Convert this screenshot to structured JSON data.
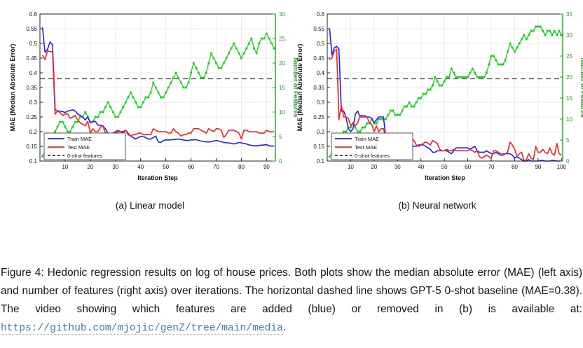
{
  "subcaptions": {
    "a": "(a) Linear model",
    "b": "(b) Neural network"
  },
  "caption": {
    "lines": [
      "Figure 4: Hedonic regression results on log of house prices. Both plots show the median absolute error (MAE) (left axis)",
      "and number of features (right axis) over iterations. The horizontal dashed line shows GPT-5 0-shot baseline (MAE=0.38).",
      "The video showing which features are added (blue) or removed in (b) is available at:"
    ],
    "link_text": "https://github.com/mjojic/genZ/tree/main/media",
    "after_link": "."
  },
  "colors": {
    "train": "#2020ff",
    "test": "#f82222",
    "features_line": "#12d412",
    "features_axis": "#1ea81e",
    "baseline": "#4f4f4f",
    "legend_dash": "#333333",
    "grid": "#ebebeb",
    "axis": "#222222",
    "text": "#111111",
    "link": "#3b7fad"
  },
  "chart_data": [
    {
      "type": "line",
      "title": "Linear model",
      "xlabel": "Iteration Step",
      "ylabel_left": "MAE (Median Absolute Error)",
      "ylabel_right": "Number of Features",
      "xlim": [
        0,
        93.5
      ],
      "xticks": [
        10,
        20,
        30,
        40,
        50,
        60,
        70,
        80,
        90
      ],
      "ylim_left": [
        0.1,
        0.6
      ],
      "yticks_left": [
        0.1,
        0.15,
        0.2,
        0.25,
        0.3,
        0.35,
        0.4,
        0.45,
        0.5,
        0.55,
        0.6
      ],
      "ylim_right": [
        0,
        30
      ],
      "yticks_right": [
        0,
        5,
        10,
        15,
        20,
        25,
        30
      ],
      "grid": true,
      "legend_position": "lower-left",
      "baseline": {
        "y": 0.38,
        "axis": "left",
        "label": "0-shot features"
      },
      "legend": [
        "Train MAE",
        "Test MAE",
        "0-shot features"
      ],
      "x_start": 1,
      "series": [
        {
          "name": "Train MAE",
          "axis": "left",
          "color": "#2020ff",
          "values": [
            0.555,
            0.47,
            0.48,
            0.505,
            0.495,
            0.275,
            0.27,
            0.27,
            0.268,
            0.265,
            0.27,
            0.272,
            0.274,
            0.27,
            0.26,
            0.255,
            0.25,
            0.24,
            0.25,
            0.23,
            0.235,
            0.235,
            0.222,
            0.222,
            0.22,
            0.21,
            0.195,
            0.19,
            0.192,
            0.195,
            0.2,
            0.2,
            0.2,
            0.205,
            0.195,
            0.185,
            0.18,
            0.175,
            0.18,
            0.183,
            0.183,
            0.18,
            0.175,
            0.175,
            0.18,
            0.185,
            0.165,
            0.163,
            0.17,
            0.172,
            0.172,
            0.172,
            0.173,
            0.174,
            0.175,
            0.173,
            0.172,
            0.17,
            0.17,
            0.172,
            0.172,
            0.173,
            0.17,
            0.168,
            0.167,
            0.165,
            0.165,
            0.166,
            0.168,
            0.17,
            0.168,
            0.166,
            0.163,
            0.162,
            0.162,
            0.16,
            0.158,
            0.16,
            0.163,
            0.162,
            0.16,
            0.158,
            0.155,
            0.153,
            0.152,
            0.152,
            0.153,
            0.154,
            0.155,
            0.156,
            0.152,
            0.151,
            0.151
          ]
        },
        {
          "name": "Test MAE",
          "axis": "left",
          "color": "#f82222",
          "values": [
            0.46,
            0.445,
            0.475,
            0.472,
            0.472,
            0.26,
            0.27,
            0.265,
            0.255,
            0.26,
            0.26,
            0.245,
            0.25,
            0.255,
            0.24,
            0.23,
            0.225,
            0.22,
            0.235,
            0.195,
            0.21,
            0.2,
            0.2,
            0.215,
            0.22,
            0.195,
            0.195,
            0.19,
            0.195,
            0.2,
            0.205,
            0.2,
            0.195,
            0.205,
            0.19,
            0.185,
            0.19,
            0.19,
            0.195,
            0.195,
            0.19,
            0.19,
            0.19,
            0.19,
            0.21,
            0.205,
            0.2,
            0.2,
            0.2,
            0.2,
            0.195,
            0.195,
            0.21,
            0.2,
            0.195,
            0.185,
            0.19,
            0.19,
            0.195,
            0.195,
            0.21,
            0.21,
            0.21,
            0.205,
            0.2,
            0.195,
            0.21,
            0.205,
            0.2,
            0.21,
            0.21,
            0.205,
            0.18,
            0.19,
            0.205,
            0.205,
            0.205,
            0.2,
            0.195,
            0.175,
            0.205,
            0.205,
            0.2,
            0.2,
            0.2,
            0.2,
            0.195,
            0.195,
            0.195,
            0.205,
            0.2,
            0.2,
            0.2
          ]
        },
        {
          "name": "Number of Features",
          "axis": "right",
          "color": "#12d412",
          "marker": "square",
          "values": [
            1,
            2,
            3,
            4,
            5,
            6,
            7,
            8,
            8,
            7,
            6,
            6,
            7,
            8,
            8,
            9,
            9,
            10,
            9,
            8,
            8,
            9,
            9,
            10,
            10,
            11,
            12,
            11,
            10,
            9,
            9,
            10,
            11,
            12,
            13,
            14,
            13,
            12,
            11,
            11,
            12,
            13,
            13,
            14,
            16,
            15,
            14,
            13,
            13,
            14,
            15,
            16,
            17,
            18,
            17,
            16,
            15,
            15,
            16,
            18,
            20,
            19,
            18,
            17,
            17,
            18,
            20,
            22,
            21,
            20,
            19,
            19,
            20,
            21,
            22,
            23,
            24,
            23,
            22,
            21,
            22,
            23,
            24,
            25,
            23,
            22,
            24,
            25,
            25,
            26,
            25,
            24,
            23
          ]
        }
      ]
    },
    {
      "type": "line",
      "title": "Neural network",
      "xlabel": "Iteration Step",
      "ylabel_left": "MAE (Median Absolute Error)",
      "ylabel_right": "Number of Features",
      "xlim": [
        0,
        100.5
      ],
      "xticks": [
        10,
        20,
        30,
        40,
        50,
        60,
        70,
        80,
        90,
        100
      ],
      "ylim_left": [
        0.1,
        0.6
      ],
      "yticks_left": [
        0.1,
        0.15,
        0.2,
        0.25,
        0.3,
        0.35,
        0.4,
        0.45,
        0.5,
        0.55,
        0.6
      ],
      "ylim_right": [
        0,
        35
      ],
      "yticks_right": [
        0,
        5,
        10,
        15,
        20,
        25,
        30,
        35
      ],
      "grid": true,
      "legend_position": "lower-left",
      "baseline": {
        "y": 0.38,
        "axis": "left",
        "label": "0-shot features"
      },
      "legend": [
        "Train MAE",
        "Test MAE",
        "0-shot features"
      ],
      "x_start": 1,
      "series": [
        {
          "name": "Train MAE",
          "axis": "left",
          "color": "#2020ff",
          "values": [
            0.55,
            0.46,
            0.485,
            0.49,
            0.48,
            0.27,
            0.27,
            0.25,
            0.21,
            0.2,
            0.21,
            0.26,
            0.27,
            0.25,
            0.25,
            0.25,
            0.25,
            0.25,
            0.245,
            0.23,
            0.24,
            0.25,
            0.25,
            0.25,
            0.18,
            0.17,
            0.16,
            0.155,
            0.16,
            0.165,
            0.17,
            0.17,
            0.165,
            0.16,
            0.155,
            0.155,
            0.15,
            0.15,
            0.155,
            0.155,
            0.155,
            0.15,
            0.145,
            0.14,
            0.13,
            0.13,
            0.135,
            0.135,
            0.135,
            0.135,
            0.135,
            0.13,
            0.125,
            0.135,
            0.145,
            0.145,
            0.145,
            0.145,
            0.145,
            0.145,
            0.14,
            0.145,
            0.15,
            0.135,
            0.13,
            0.13,
            0.13,
            0.135,
            0.13,
            0.125,
            0.125,
            0.13,
            0.125,
            0.12,
            0.12,
            0.125,
            0.125,
            0.125,
            0.12,
            0.11,
            0.115,
            0.11,
            0.105,
            0.1,
            0.1,
            0.105,
            0.1,
            0.1,
            0.1,
            0.1,
            0.102,
            0.102,
            0.1,
            0.1,
            0.1,
            0.102,
            0.102,
            0.1,
            0.1,
            0.1
          ]
        },
        {
          "name": "Test MAE",
          "axis": "left",
          "color": "#f82222",
          "values": [
            0.445,
            0.45,
            0.475,
            0.48,
            0.24,
            0.29,
            0.25,
            0.25,
            0.245,
            0.22,
            0.23,
            0.22,
            0.23,
            0.255,
            0.255,
            0.255,
            0.25,
            0.23,
            0.225,
            0.2,
            0.22,
            0.2,
            0.21,
            0.21,
            0.18,
            0.175,
            0.18,
            0.155,
            0.15,
            0.155,
            0.15,
            0.155,
            0.16,
            0.175,
            0.18,
            0.175,
            0.17,
            0.155,
            0.15,
            0.155,
            0.16,
            0.165,
            0.16,
            0.155,
            0.17,
            0.165,
            0.16,
            0.14,
            0.135,
            0.135,
            0.14,
            0.135,
            0.135,
            0.14,
            0.135,
            0.135,
            0.135,
            0.135,
            0.135,
            0.135,
            0.14,
            0.135,
            0.13,
            0.135,
            0.115,
            0.11,
            0.115,
            0.12,
            0.115,
            0.11,
            0.135,
            0.135,
            0.13,
            0.125,
            0.125,
            0.125,
            0.13,
            0.165,
            0.155,
            0.14,
            0.115,
            0.125,
            0.13,
            0.1,
            0.105,
            0.125,
            0.11,
            0.105,
            0.15,
            0.13,
            0.13,
            0.14,
            0.13,
            0.125,
            0.145,
            0.125,
            0.12,
            0.16,
            0.125,
            0.12
          ]
        },
        {
          "name": "Number of Features",
          "axis": "right",
          "color": "#12d412",
          "marker": "square",
          "values": [
            1,
            2,
            3,
            4,
            5,
            6,
            7,
            7,
            8,
            8,
            9,
            8,
            7,
            7,
            8,
            8,
            9,
            9,
            10,
            9,
            9,
            10,
            10,
            10,
            10,
            11,
            12,
            12,
            11,
            11,
            11,
            12,
            13,
            13,
            14,
            13,
            13,
            14,
            15,
            15,
            16,
            16,
            17,
            17,
            18,
            20,
            19,
            18,
            18,
            19,
            20,
            20,
            22,
            21,
            20,
            20,
            20,
            20,
            20,
            20,
            21,
            22,
            21,
            20,
            20,
            20,
            20,
            21,
            23,
            25,
            25,
            24,
            23,
            23,
            23,
            24,
            26,
            28,
            27,
            26,
            27,
            28,
            29,
            30,
            29,
            30,
            31,
            31,
            32,
            32,
            32,
            31,
            30,
            31,
            31,
            30,
            31,
            30,
            31,
            30
          ]
        }
      ]
    }
  ]
}
